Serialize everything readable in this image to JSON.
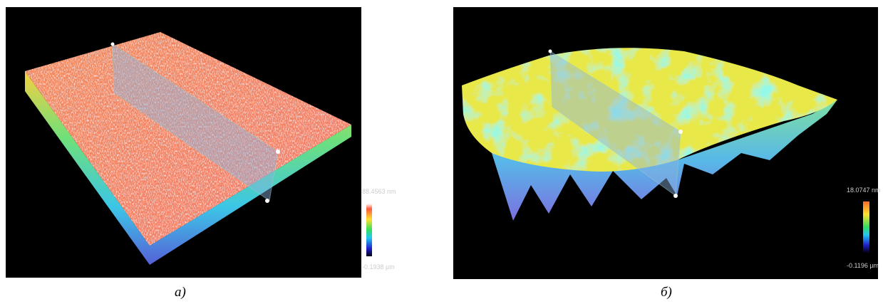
{
  "panels": [
    {
      "scale_max": "88.4563 nm",
      "scale_min": "-0.1938 µm",
      "caption": "a)"
    },
    {
      "scale_max": "18.0747 nm",
      "scale_min": "-0.1196 µm",
      "caption": "б)"
    }
  ]
}
